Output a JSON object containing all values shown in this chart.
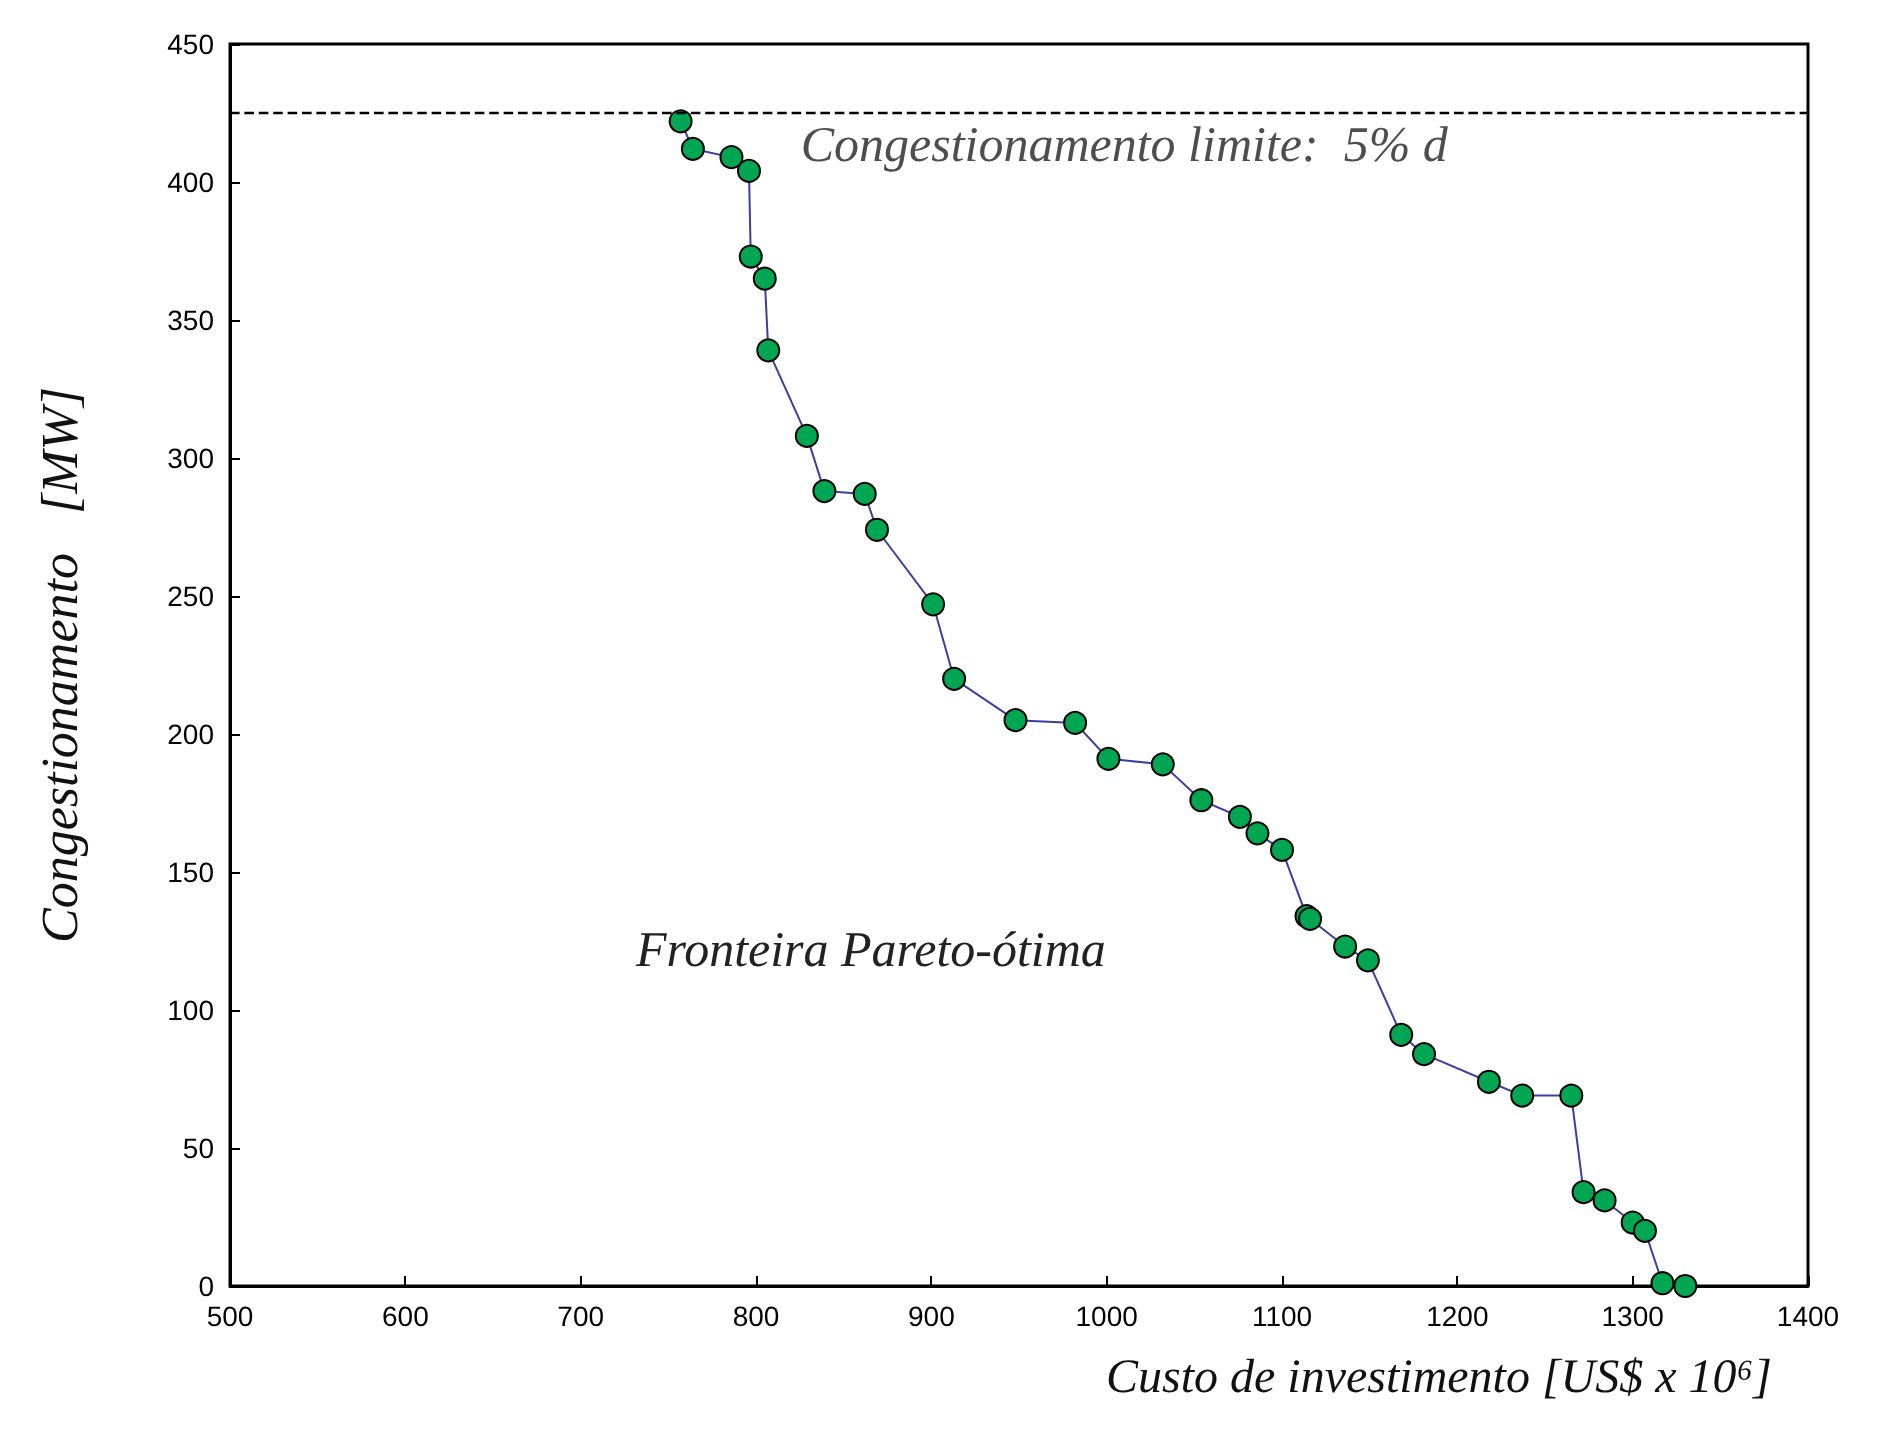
{
  "chart_data": {
    "type": "line",
    "xlabel": "Custo de investimento [US$ x 10⁶]",
    "ylabel": "Congestionamento   [MW]",
    "x": [
      757,
      764,
      786,
      796,
      797,
      805,
      807,
      829,
      839,
      862,
      869,
      901,
      913,
      948,
      982,
      1001,
      1032,
      1054,
      1076,
      1086,
      1100,
      1114,
      1116,
      1136,
      1149,
      1168,
      1181,
      1218,
      1237,
      1265,
      1272,
      1284,
      1300,
      1307,
      1317,
      1330
    ],
    "series": [
      {
        "color": "#3b3fa3",
        "colors": [
          "#00a651",
          "#00a651",
          "#00a651",
          "#00a651",
          "#00a651",
          "#00a651",
          "#00a651",
          "#00a651",
          "#00a651",
          "#00a651",
          "#00a651",
          "#00a651",
          "#00a651",
          "#00a651",
          "#00a651",
          "#00a651",
          "#00a651",
          "#00a651",
          "#00a651",
          "#00a651",
          "#00a651",
          "#00a651",
          "#00a651",
          "#00a651",
          "#00a651",
          "#00a651",
          "#00a651",
          "#00a651",
          "#00a651",
          "#00a651",
          "#00a651",
          "#00a651",
          "#00a651",
          "#00a651",
          "#00a651",
          "#00a651"
        ],
        "values": [
          422,
          412,
          409,
          404,
          373,
          365,
          339,
          308,
          288,
          287,
          274,
          247,
          220,
          205,
          204,
          191,
          189,
          176,
          170,
          164,
          158,
          134,
          133,
          123,
          118,
          91,
          84,
          74,
          69,
          69,
          34,
          31,
          23,
          20,
          1,
          0
        ]
      }
    ],
    "marker": "circle",
    "xlim": [
      500,
      1400
    ],
    "xticks": [
      500,
      600,
      700,
      800,
      900,
      1000,
      1100,
      1200,
      1300,
      1400
    ],
    "ylim": [
      0,
      450
    ],
    "yticks": [
      0,
      50,
      100,
      150,
      200,
      250,
      300,
      350,
      400,
      450
    ],
    "grid": false,
    "ref_lines": [
      {
        "axis": "y",
        "value": 425,
        "color": "#000000",
        "line_style": "dashed"
      }
    ],
    "annotations": [
      {
        "text": "Congestionamento limite:  5% d",
        "y": 425
      },
      "Fronteira Pareto-ótima"
    ]
  }
}
